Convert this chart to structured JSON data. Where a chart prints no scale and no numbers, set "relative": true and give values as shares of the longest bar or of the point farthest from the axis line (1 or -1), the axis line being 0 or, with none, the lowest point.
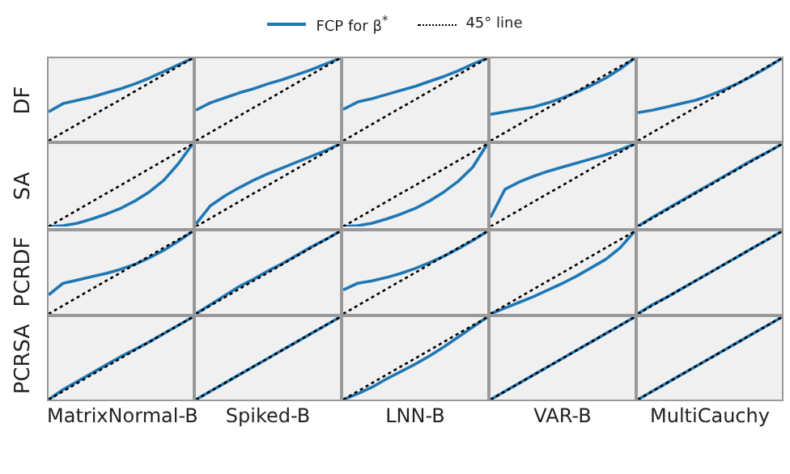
{
  "chart_data": [
    {
      "type": "line",
      "ylabel": "DF",
      "relative": true,
      "legend": "top",
      "tick_labels": false,
      "categories": [
        null,
        null,
        null,
        null,
        null,
        null,
        null,
        null,
        null,
        null,
        null
      ],
      "series": [
        {
          "name": "FCP for β$^{*}$",
          "color": "#1f77b4",
          "values": [
            0.35,
            0.45,
            0.49,
            0.53,
            0.58,
            0.63,
            0.69,
            0.76,
            0.84,
            0.92,
            1
          ]
        },
        {
          "name": "45° line",
          "color": "#000000",
          "line_style": "dotted",
          "values": [
            0,
            0.1,
            0.2,
            0.3,
            0.4,
            0.5,
            0.6,
            0.7,
            0.8,
            0.9,
            1
          ]
        }
      ]
    },
    {
      "type": "line",
      "relative": true,
      "tick_labels": false,
      "categories": [
        null,
        null,
        null,
        null,
        null,
        null,
        null,
        null,
        null,
        null,
        null
      ],
      "series": [
        {
          "color": "#1f77b4",
          "values": [
            0.37,
            0.46,
            0.52,
            0.58,
            0.63,
            0.69,
            0.74,
            0.8,
            0.86,
            0.93,
            1
          ]
        },
        {
          "color": "#000000",
          "line_style": "dotted",
          "values": [
            0,
            0.1,
            0.2,
            0.3,
            0.4,
            0.5,
            0.6,
            0.7,
            0.8,
            0.9,
            1
          ]
        }
      ]
    },
    {
      "type": "line",
      "relative": true,
      "tick_labels": false,
      "categories": [
        null,
        null,
        null,
        null,
        null,
        null,
        null,
        null,
        null,
        null,
        null
      ],
      "series": [
        {
          "color": "#1f77b4",
          "values": [
            0.38,
            0.47,
            0.51,
            0.56,
            0.61,
            0.66,
            0.72,
            0.78,
            0.85,
            0.93,
            1
          ]
        },
        {
          "color": "#000000",
          "line_style": "dotted",
          "values": [
            0,
            0.1,
            0.2,
            0.3,
            0.4,
            0.5,
            0.6,
            0.7,
            0.8,
            0.9,
            1
          ]
        }
      ]
    },
    {
      "type": "line",
      "relative": true,
      "tick_labels": false,
      "categories": [
        null,
        null,
        null,
        null,
        null,
        null,
        null,
        null,
        null,
        null,
        null
      ],
      "series": [
        {
          "color": "#1f77b4",
          "values": [
            0.32,
            0.35,
            0.38,
            0.41,
            0.46,
            0.52,
            0.59,
            0.67,
            0.76,
            0.87,
            1
          ]
        },
        {
          "color": "#000000",
          "line_style": "dotted",
          "values": [
            0,
            0.1,
            0.2,
            0.3,
            0.4,
            0.5,
            0.6,
            0.7,
            0.8,
            0.9,
            1
          ]
        }
      ]
    },
    {
      "type": "line",
      "relative": true,
      "tick_labels": false,
      "categories": [
        null,
        null,
        null,
        null,
        null,
        null,
        null,
        null,
        null,
        null,
        null
      ],
      "series": [
        {
          "color": "#1f77b4",
          "values": [
            0.34,
            0.37,
            0.41,
            0.45,
            0.49,
            0.55,
            0.62,
            0.7,
            0.79,
            0.89,
            1
          ]
        },
        {
          "color": "#000000",
          "line_style": "dotted",
          "values": [
            0,
            0.1,
            0.2,
            0.3,
            0.4,
            0.5,
            0.6,
            0.7,
            0.8,
            0.9,
            1
          ]
        }
      ]
    },
    {
      "type": "line",
      "ylabel": "SA",
      "relative": true,
      "tick_labels": false,
      "categories": [
        null,
        null,
        null,
        null,
        null,
        null,
        null,
        null,
        null,
        null,
        null
      ],
      "series": [
        {
          "color": "#1f77b4",
          "values": [
            0,
            0.01,
            0.04,
            0.09,
            0.15,
            0.22,
            0.31,
            0.42,
            0.56,
            0.76,
            1
          ]
        },
        {
          "color": "#000000",
          "line_style": "dotted",
          "values": [
            0,
            0.1,
            0.2,
            0.3,
            0.4,
            0.5,
            0.6,
            0.7,
            0.8,
            0.9,
            1
          ]
        }
      ]
    },
    {
      "type": "line",
      "relative": true,
      "tick_labels": false,
      "categories": [
        null,
        null,
        null,
        null,
        null,
        null,
        null,
        null,
        null,
        null,
        null
      ],
      "series": [
        {
          "color": "#1f77b4",
          "values": [
            0.03,
            0.25,
            0.37,
            0.47,
            0.56,
            0.64,
            0.71,
            0.78,
            0.85,
            0.92,
            1
          ]
        },
        {
          "color": "#000000",
          "line_style": "dotted",
          "values": [
            0,
            0.1,
            0.2,
            0.3,
            0.4,
            0.5,
            0.6,
            0.7,
            0.8,
            0.9,
            1
          ]
        }
      ]
    },
    {
      "type": "line",
      "relative": true,
      "tick_labels": false,
      "categories": [
        null,
        null,
        null,
        null,
        null,
        null,
        null,
        null,
        null,
        null,
        null
      ],
      "series": [
        {
          "color": "#1f77b4",
          "values": [
            0,
            0.01,
            0.04,
            0.09,
            0.15,
            0.22,
            0.31,
            0.42,
            0.55,
            0.72,
            1
          ]
        },
        {
          "color": "#000000",
          "line_style": "dotted",
          "values": [
            0,
            0.1,
            0.2,
            0.3,
            0.4,
            0.5,
            0.6,
            0.7,
            0.8,
            0.9,
            1
          ]
        }
      ]
    },
    {
      "type": "line",
      "relative": true,
      "tick_labels": false,
      "categories": [
        null,
        null,
        null,
        null,
        null,
        null,
        null,
        null,
        null,
        null,
        null
      ],
      "series": [
        {
          "color": "#1f77b4",
          "values": [
            0.11,
            0.45,
            0.54,
            0.61,
            0.67,
            0.72,
            0.77,
            0.82,
            0.87,
            0.93,
            1
          ]
        },
        {
          "color": "#000000",
          "line_style": "dotted",
          "values": [
            0,
            0.1,
            0.2,
            0.3,
            0.4,
            0.5,
            0.6,
            0.7,
            0.8,
            0.9,
            1
          ]
        }
      ]
    },
    {
      "type": "line",
      "relative": true,
      "tick_labels": false,
      "categories": [
        null,
        null,
        null,
        null,
        null,
        null,
        null,
        null,
        null,
        null,
        null
      ],
      "series": [
        {
          "color": "#1f77b4",
          "values": [
            0,
            0.11,
            0.21,
            0.31,
            0.41,
            0.51,
            0.61,
            0.71,
            0.81,
            0.9,
            1
          ]
        },
        {
          "color": "#000000",
          "line_style": "dotted",
          "values": [
            0,
            0.1,
            0.2,
            0.3,
            0.4,
            0.5,
            0.6,
            0.7,
            0.8,
            0.9,
            1
          ]
        }
      ]
    },
    {
      "type": "line",
      "ylabel": "PCRDF",
      "relative": true,
      "tick_labels": false,
      "categories": [
        null,
        null,
        null,
        null,
        null,
        null,
        null,
        null,
        null,
        null,
        null
      ],
      "series": [
        {
          "color": "#1f77b4",
          "values": [
            0.23,
            0.37,
            0.41,
            0.45,
            0.49,
            0.54,
            0.6,
            0.68,
            0.77,
            0.88,
            1
          ]
        },
        {
          "color": "#000000",
          "line_style": "dotted",
          "values": [
            0,
            0.1,
            0.2,
            0.3,
            0.4,
            0.5,
            0.6,
            0.7,
            0.8,
            0.9,
            1
          ]
        }
      ]
    },
    {
      "type": "line",
      "relative": true,
      "tick_labels": false,
      "categories": [
        null,
        null,
        null,
        null,
        null,
        null,
        null,
        null,
        null,
        null,
        null
      ],
      "series": [
        {
          "color": "#1f77b4",
          "values": [
            0,
            0.11,
            0.22,
            0.33,
            0.42,
            0.52,
            0.61,
            0.71,
            0.81,
            0.9,
            1
          ]
        },
        {
          "color": "#000000",
          "line_style": "dotted",
          "values": [
            0,
            0.1,
            0.2,
            0.3,
            0.4,
            0.5,
            0.6,
            0.7,
            0.8,
            0.9,
            1
          ]
        }
      ]
    },
    {
      "type": "line",
      "relative": true,
      "tick_labels": false,
      "categories": [
        null,
        null,
        null,
        null,
        null,
        null,
        null,
        null,
        null,
        null,
        null
      ],
      "series": [
        {
          "color": "#1f77b4",
          "values": [
            0.29,
            0.37,
            0.4,
            0.44,
            0.49,
            0.55,
            0.62,
            0.7,
            0.79,
            0.89,
            1
          ]
        },
        {
          "color": "#000000",
          "line_style": "dotted",
          "values": [
            0,
            0.1,
            0.2,
            0.3,
            0.4,
            0.5,
            0.6,
            0.7,
            0.8,
            0.9,
            1
          ]
        }
      ]
    },
    {
      "type": "line",
      "relative": true,
      "tick_labels": false,
      "categories": [
        null,
        null,
        null,
        null,
        null,
        null,
        null,
        null,
        null,
        null,
        null
      ],
      "series": [
        {
          "color": "#1f77b4",
          "values": [
            0,
            0.07,
            0.14,
            0.21,
            0.29,
            0.37,
            0.46,
            0.56,
            0.66,
            0.8,
            1
          ]
        },
        {
          "color": "#000000",
          "line_style": "dotted",
          "values": [
            0,
            0.1,
            0.2,
            0.3,
            0.4,
            0.5,
            0.6,
            0.7,
            0.8,
            0.9,
            1
          ]
        }
      ]
    },
    {
      "type": "line",
      "relative": true,
      "tick_labels": false,
      "categories": [
        null,
        null,
        null,
        null,
        null,
        null,
        null,
        null,
        null,
        null,
        null
      ],
      "series": [
        {
          "color": "#1f77b4",
          "values": [
            0,
            0.11,
            0.2,
            0.3,
            0.4,
            0.5,
            0.6,
            0.7,
            0.8,
            0.9,
            1
          ]
        },
        {
          "color": "#000000",
          "line_style": "dotted",
          "values": [
            0,
            0.1,
            0.2,
            0.3,
            0.4,
            0.5,
            0.6,
            0.7,
            0.8,
            0.9,
            1
          ]
        }
      ]
    },
    {
      "type": "line",
      "ylabel": "PCRSA",
      "xlabel": "MatrixNormal-B",
      "relative": true,
      "tick_labels": false,
      "categories": [
        null,
        null,
        null,
        null,
        null,
        null,
        null,
        null,
        null,
        null,
        null
      ],
      "series": [
        {
          "color": "#1f77b4",
          "values": [
            0,
            0.12,
            0.22,
            0.32,
            0.42,
            0.52,
            0.61,
            0.7,
            0.8,
            0.9,
            1
          ]
        },
        {
          "color": "#000000",
          "line_style": "dotted",
          "values": [
            0,
            0.1,
            0.2,
            0.3,
            0.4,
            0.5,
            0.6,
            0.7,
            0.8,
            0.9,
            1
          ]
        }
      ]
    },
    {
      "type": "line",
      "xlabel": "Spiked-B",
      "relative": true,
      "tick_labels": false,
      "categories": [
        null,
        null,
        null,
        null,
        null,
        null,
        null,
        null,
        null,
        null,
        null
      ],
      "series": [
        {
          "color": "#1f77b4",
          "values": [
            0,
            0.1,
            0.2,
            0.3,
            0.4,
            0.5,
            0.6,
            0.7,
            0.8,
            0.9,
            1
          ]
        },
        {
          "color": "#000000",
          "line_style": "dotted",
          "values": [
            0,
            0.1,
            0.2,
            0.3,
            0.4,
            0.5,
            0.6,
            0.7,
            0.8,
            0.9,
            1
          ]
        }
      ]
    },
    {
      "type": "line",
      "xlabel": "LNN-B",
      "relative": true,
      "tick_labels": false,
      "categories": [
        null,
        null,
        null,
        null,
        null,
        null,
        null,
        null,
        null,
        null,
        null
      ],
      "series": [
        {
          "color": "#1f77b4",
          "values": [
            0,
            0.07,
            0.15,
            0.25,
            0.34,
            0.43,
            0.53,
            0.64,
            0.76,
            0.88,
            1
          ]
        },
        {
          "color": "#000000",
          "line_style": "dotted",
          "values": [
            0,
            0.1,
            0.2,
            0.3,
            0.4,
            0.5,
            0.6,
            0.7,
            0.8,
            0.9,
            1
          ]
        }
      ]
    },
    {
      "type": "line",
      "xlabel": "VAR-B",
      "relative": true,
      "tick_labels": false,
      "categories": [
        null,
        null,
        null,
        null,
        null,
        null,
        null,
        null,
        null,
        null,
        null
      ],
      "series": [
        {
          "color": "#1f77b4",
          "values": [
            0,
            0.1,
            0.2,
            0.3,
            0.4,
            0.5,
            0.6,
            0.7,
            0.8,
            0.9,
            1
          ]
        },
        {
          "color": "#000000",
          "line_style": "dotted",
          "values": [
            0,
            0.1,
            0.2,
            0.3,
            0.4,
            0.5,
            0.6,
            0.7,
            0.8,
            0.9,
            1
          ]
        }
      ]
    },
    {
      "type": "line",
      "xlabel": "MultiCauchy",
      "relative": true,
      "tick_labels": false,
      "categories": [
        null,
        null,
        null,
        null,
        null,
        null,
        null,
        null,
        null,
        null,
        null
      ],
      "series": [
        {
          "color": "#1f77b4",
          "values": [
            0,
            0.1,
            0.2,
            0.3,
            0.4,
            0.5,
            0.6,
            0.7,
            0.8,
            0.9,
            1
          ]
        },
        {
          "color": "#000000",
          "line_style": "dotted",
          "values": [
            0,
            0.1,
            0.2,
            0.3,
            0.4,
            0.5,
            0.6,
            0.7,
            0.8,
            0.9,
            1
          ]
        }
      ]
    }
  ]
}
